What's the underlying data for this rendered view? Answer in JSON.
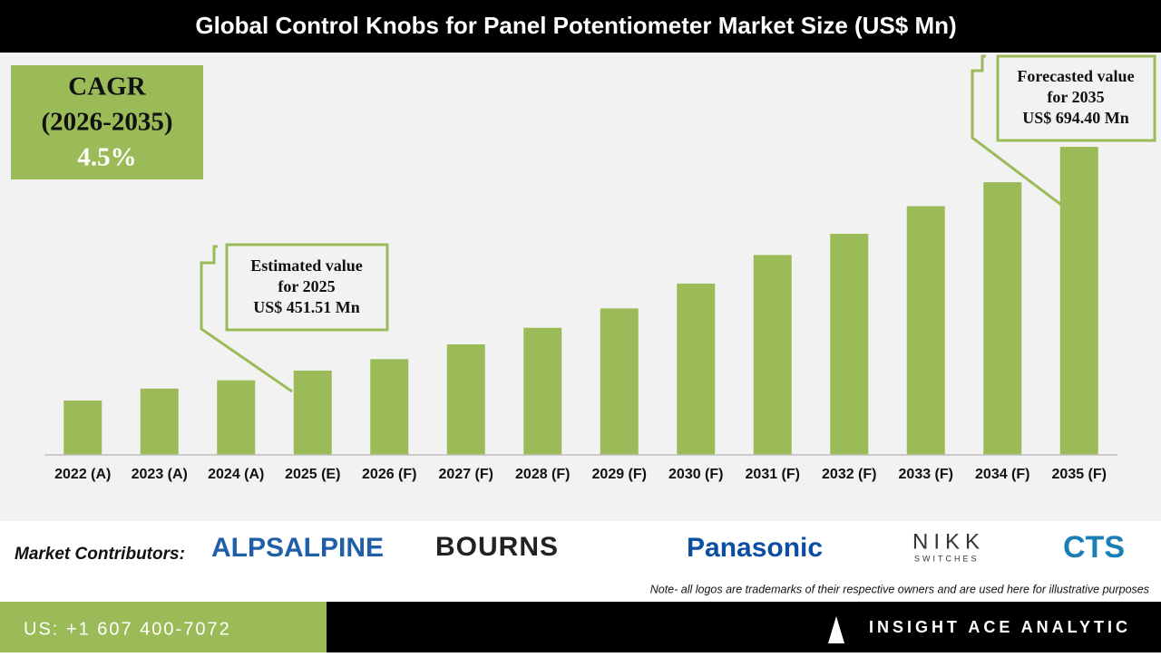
{
  "chart_data": {
    "type": "bar",
    "title": "Global Control Knobs for Panel Potentiometer Market Size (US$ Mn)",
    "categories": [
      "2022 (A)",
      "2023 (A)",
      "2024 (A)",
      "2025 (E)",
      "2026 (F)",
      "2027 (F)",
      "2028 (F)",
      "2029 (F)",
      "2030 (F)",
      "2031 (F)",
      "2032 (F)",
      "2033 (F)",
      "2034 (F)",
      "2035 (F)"
    ],
    "values": [
      419,
      432,
      441,
      451.51,
      464,
      480,
      498,
      519,
      546,
      577,
      600,
      630,
      656,
      694.4
    ],
    "color": "#9bbb59",
    "ylim": [
      360,
      720
    ],
    "annotations": [
      {
        "lines": [
          "Estimated value",
          "for 2025",
          "US$ 451.51 Mn"
        ]
      },
      {
        "lines": [
          "Forecasted value",
          "for 2035",
          "US$ 694.40 Mn"
        ]
      }
    ]
  },
  "cagr": {
    "label": "CAGR",
    "period": "(2026-2035)",
    "value": "4.5%"
  },
  "contributors": {
    "label": "Market Contributors:",
    "logos": [
      "ALPSALPINE",
      "BOURNS",
      "Panasonic",
      "NIKK",
      "SWITCHES",
      "CTS"
    ],
    "note": "Note- all logos are trademarks of their respective owners and are used here for illustrative purposes"
  },
  "footer": {
    "phone": "US: +1 607 400-7072",
    "brand": "INSIGHT ACE ANALYTIC"
  }
}
